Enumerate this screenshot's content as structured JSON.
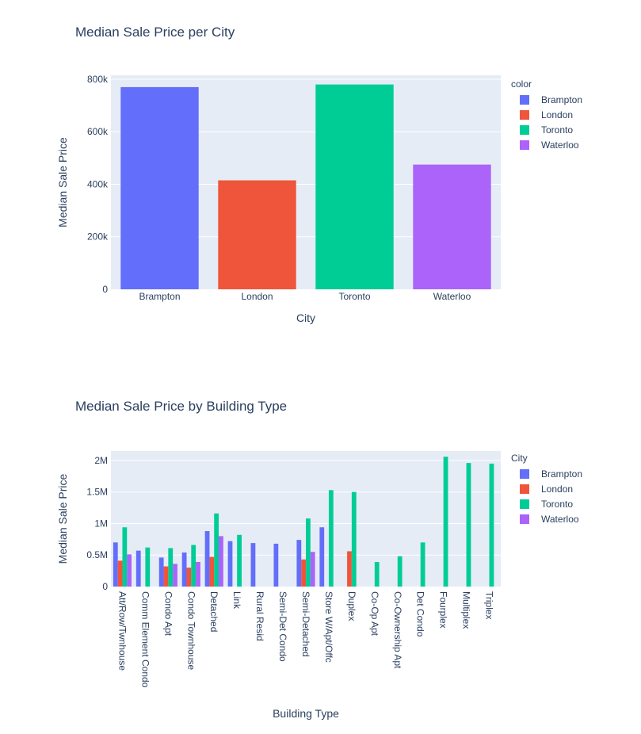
{
  "colors": {
    "Brampton": "#636efa",
    "London": "#ef553b",
    "Toronto": "#00cc96",
    "Waterloo": "#ab63fa",
    "plot_bg": "#e5ecf6",
    "grid": "#ffffff"
  },
  "chart_data": [
    {
      "type": "bar",
      "title": "Median Sale Price per City",
      "xlabel": "City",
      "ylabel": "Median Sale Price",
      "ylim": [
        0,
        815000
      ],
      "yticks": [
        0,
        200000,
        400000,
        600000,
        800000
      ],
      "ytick_labels": [
        "0",
        "200k",
        "400k",
        "600k",
        "800k"
      ],
      "legend_title": "color",
      "legend_position": "right",
      "legend": [
        "Brampton",
        "London",
        "Toronto",
        "Waterloo"
      ],
      "categories": [
        "Brampton",
        "London",
        "Toronto",
        "Waterloo"
      ],
      "values": [
        770000,
        415000,
        780000,
        475000
      ]
    },
    {
      "type": "bar",
      "barmode": "group",
      "title": "Median Sale Price by Building Type",
      "xlabel": "Building Type",
      "ylabel": "Median Sale Price",
      "ylim": [
        0,
        2150000
      ],
      "yticks": [
        0,
        500000,
        1000000,
        1500000,
        2000000
      ],
      "ytick_labels": [
        "0",
        "0.5M",
        "1M",
        "1.5M",
        "2M"
      ],
      "legend_title": "City",
      "legend_position": "right",
      "categories": [
        "Att/Row/Twnhouse",
        "Comm Element Condo",
        "Condo Apt",
        "Condo Townhouse",
        "Detached",
        "Link",
        "Rural Resid",
        "Semi-Det Condo",
        "Semi-Detached",
        "Store W/Apt/Offc",
        "Duplex",
        "Co-Op Apt",
        "Co-Ownership Apt",
        "Det Condo",
        "Fourplex",
        "Multiplex",
        "Triplex"
      ],
      "series": [
        {
          "name": "Brampton",
          "values": [
            700000,
            570000,
            460000,
            540000,
            880000,
            720000,
            690000,
            680000,
            740000,
            940000,
            null,
            null,
            null,
            null,
            null,
            null,
            null
          ]
        },
        {
          "name": "London",
          "values": [
            410000,
            null,
            320000,
            300000,
            470000,
            null,
            null,
            null,
            430000,
            null,
            560000,
            null,
            null,
            null,
            null,
            null,
            null
          ]
        },
        {
          "name": "Toronto",
          "values": [
            940000,
            620000,
            610000,
            660000,
            1160000,
            820000,
            null,
            null,
            1080000,
            1530000,
            1500000,
            390000,
            480000,
            700000,
            2060000,
            1960000,
            1950000
          ]
        },
        {
          "name": "Waterloo",
          "values": [
            510000,
            null,
            360000,
            390000,
            800000,
            null,
            null,
            null,
            550000,
            null,
            null,
            null,
            null,
            null,
            null,
            null,
            null
          ]
        }
      ]
    }
  ]
}
